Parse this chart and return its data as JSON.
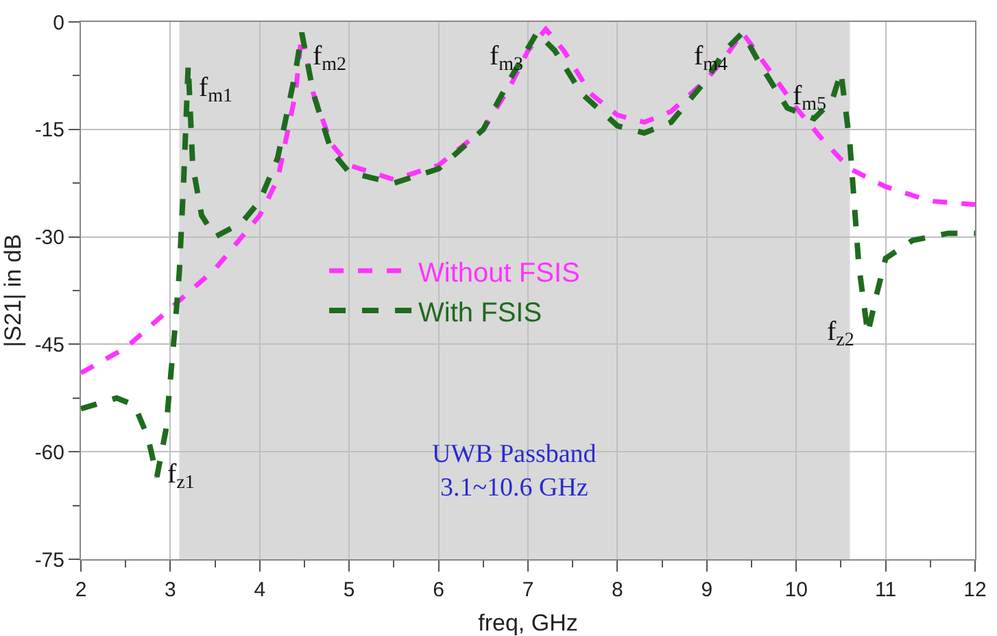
{
  "chart_data": {
    "type": "line",
    "xlabel": "freq, GHz",
    "ylabel": "|S21| in dB",
    "xlim": [
      2,
      12
    ],
    "xticks": [
      2,
      3,
      4,
      5,
      6,
      7,
      8,
      9,
      10,
      11,
      12
    ],
    "ylim": [
      -75,
      0
    ],
    "yticks": [
      -75,
      -60,
      -45,
      -30,
      -15,
      0
    ],
    "grid": true,
    "legend": "center",
    "line_style": "dashed",
    "marker": "none",
    "series": [
      {
        "name": "Without FSIS",
        "color": "#ff33ff",
        "x": [
          2,
          2.5,
          3,
          3.5,
          4,
          4.2,
          4.4,
          4.47,
          4.6,
          4.8,
          5,
          5.5,
          6,
          6.5,
          6.8,
          7,
          7.2,
          7.4,
          7.7,
          8,
          8.3,
          8.6,
          9,
          9.2,
          9.4,
          9.6,
          10,
          10.3,
          10.6,
          11,
          11.5,
          12
        ],
        "values": [
          -49,
          -45.5,
          -40,
          -34.5,
          -27,
          -22,
          -10,
          -1.5,
          -10,
          -17,
          -20,
          -22,
          -20,
          -15,
          -9,
          -4,
          -1,
          -4,
          -10,
          -13,
          -14,
          -12.5,
          -8,
          -5,
          -1.5,
          -5,
          -12,
          -16.5,
          -20.5,
          -23,
          -25,
          -25.5
        ]
      },
      {
        "name": "With FSIS",
        "color": "#1e6b1e",
        "x": [
          2,
          2.4,
          2.6,
          2.75,
          2.85,
          2.95,
          3.05,
          3.1,
          3.15,
          3.2,
          3.25,
          3.35,
          3.5,
          3.8,
          4,
          4.2,
          4.4,
          4.47,
          4.6,
          4.8,
          5,
          5.5,
          6,
          6.5,
          6.8,
          7.1,
          7.3,
          7.6,
          8,
          8.3,
          8.6,
          9,
          9.2,
          9.4,
          9.6,
          9.9,
          10.2,
          10.4,
          10.5,
          10.6,
          10.7,
          10.8,
          10.9,
          11,
          11.3,
          11.7,
          12
        ],
        "values": [
          -54,
          -52.5,
          -53.5,
          -58,
          -63.5,
          -57,
          -43,
          -35,
          -22,
          -6,
          -20,
          -27,
          -30,
          -28,
          -25,
          -19,
          -7,
          -1.5,
          -10,
          -18,
          -21,
          -22.5,
          -20.5,
          -15,
          -8,
          -1.5,
          -4,
          -10,
          -14.5,
          -15.5,
          -14,
          -8,
          -4,
          -1.5,
          -6,
          -12,
          -13.5,
          -11,
          -7,
          -17,
          -34,
          -43.5,
          -38,
          -33,
          -30.5,
          -29.5,
          -29.5
        ]
      }
    ],
    "bands": [
      {
        "axis": "x",
        "from": 3.1,
        "to": 10.6,
        "color": "#d9d9d9",
        "label": "UWB Passband\n3.1~10.6 GHz"
      }
    ],
    "annotations": [
      {
        "text": "f$_{m1}$",
        "x": 3.2,
        "y": -6
      },
      {
        "text": "f$_{m2}$",
        "x": 4.47,
        "y": -1.5
      },
      {
        "text": "f$_{m3}$",
        "x": 7.1,
        "y": -1.5
      },
      {
        "text": "f$_{m4}$",
        "x": 9.4,
        "y": -1.5
      },
      {
        "text": "f$_{m5}$",
        "x": 10.5,
        "y": -7
      },
      {
        "text": "f$_{z1}$",
        "x": 2.85,
        "y": -63.5
      },
      {
        "text": "f$_{z2}$",
        "x": 10.8,
        "y": -43.5
      }
    ]
  }
}
